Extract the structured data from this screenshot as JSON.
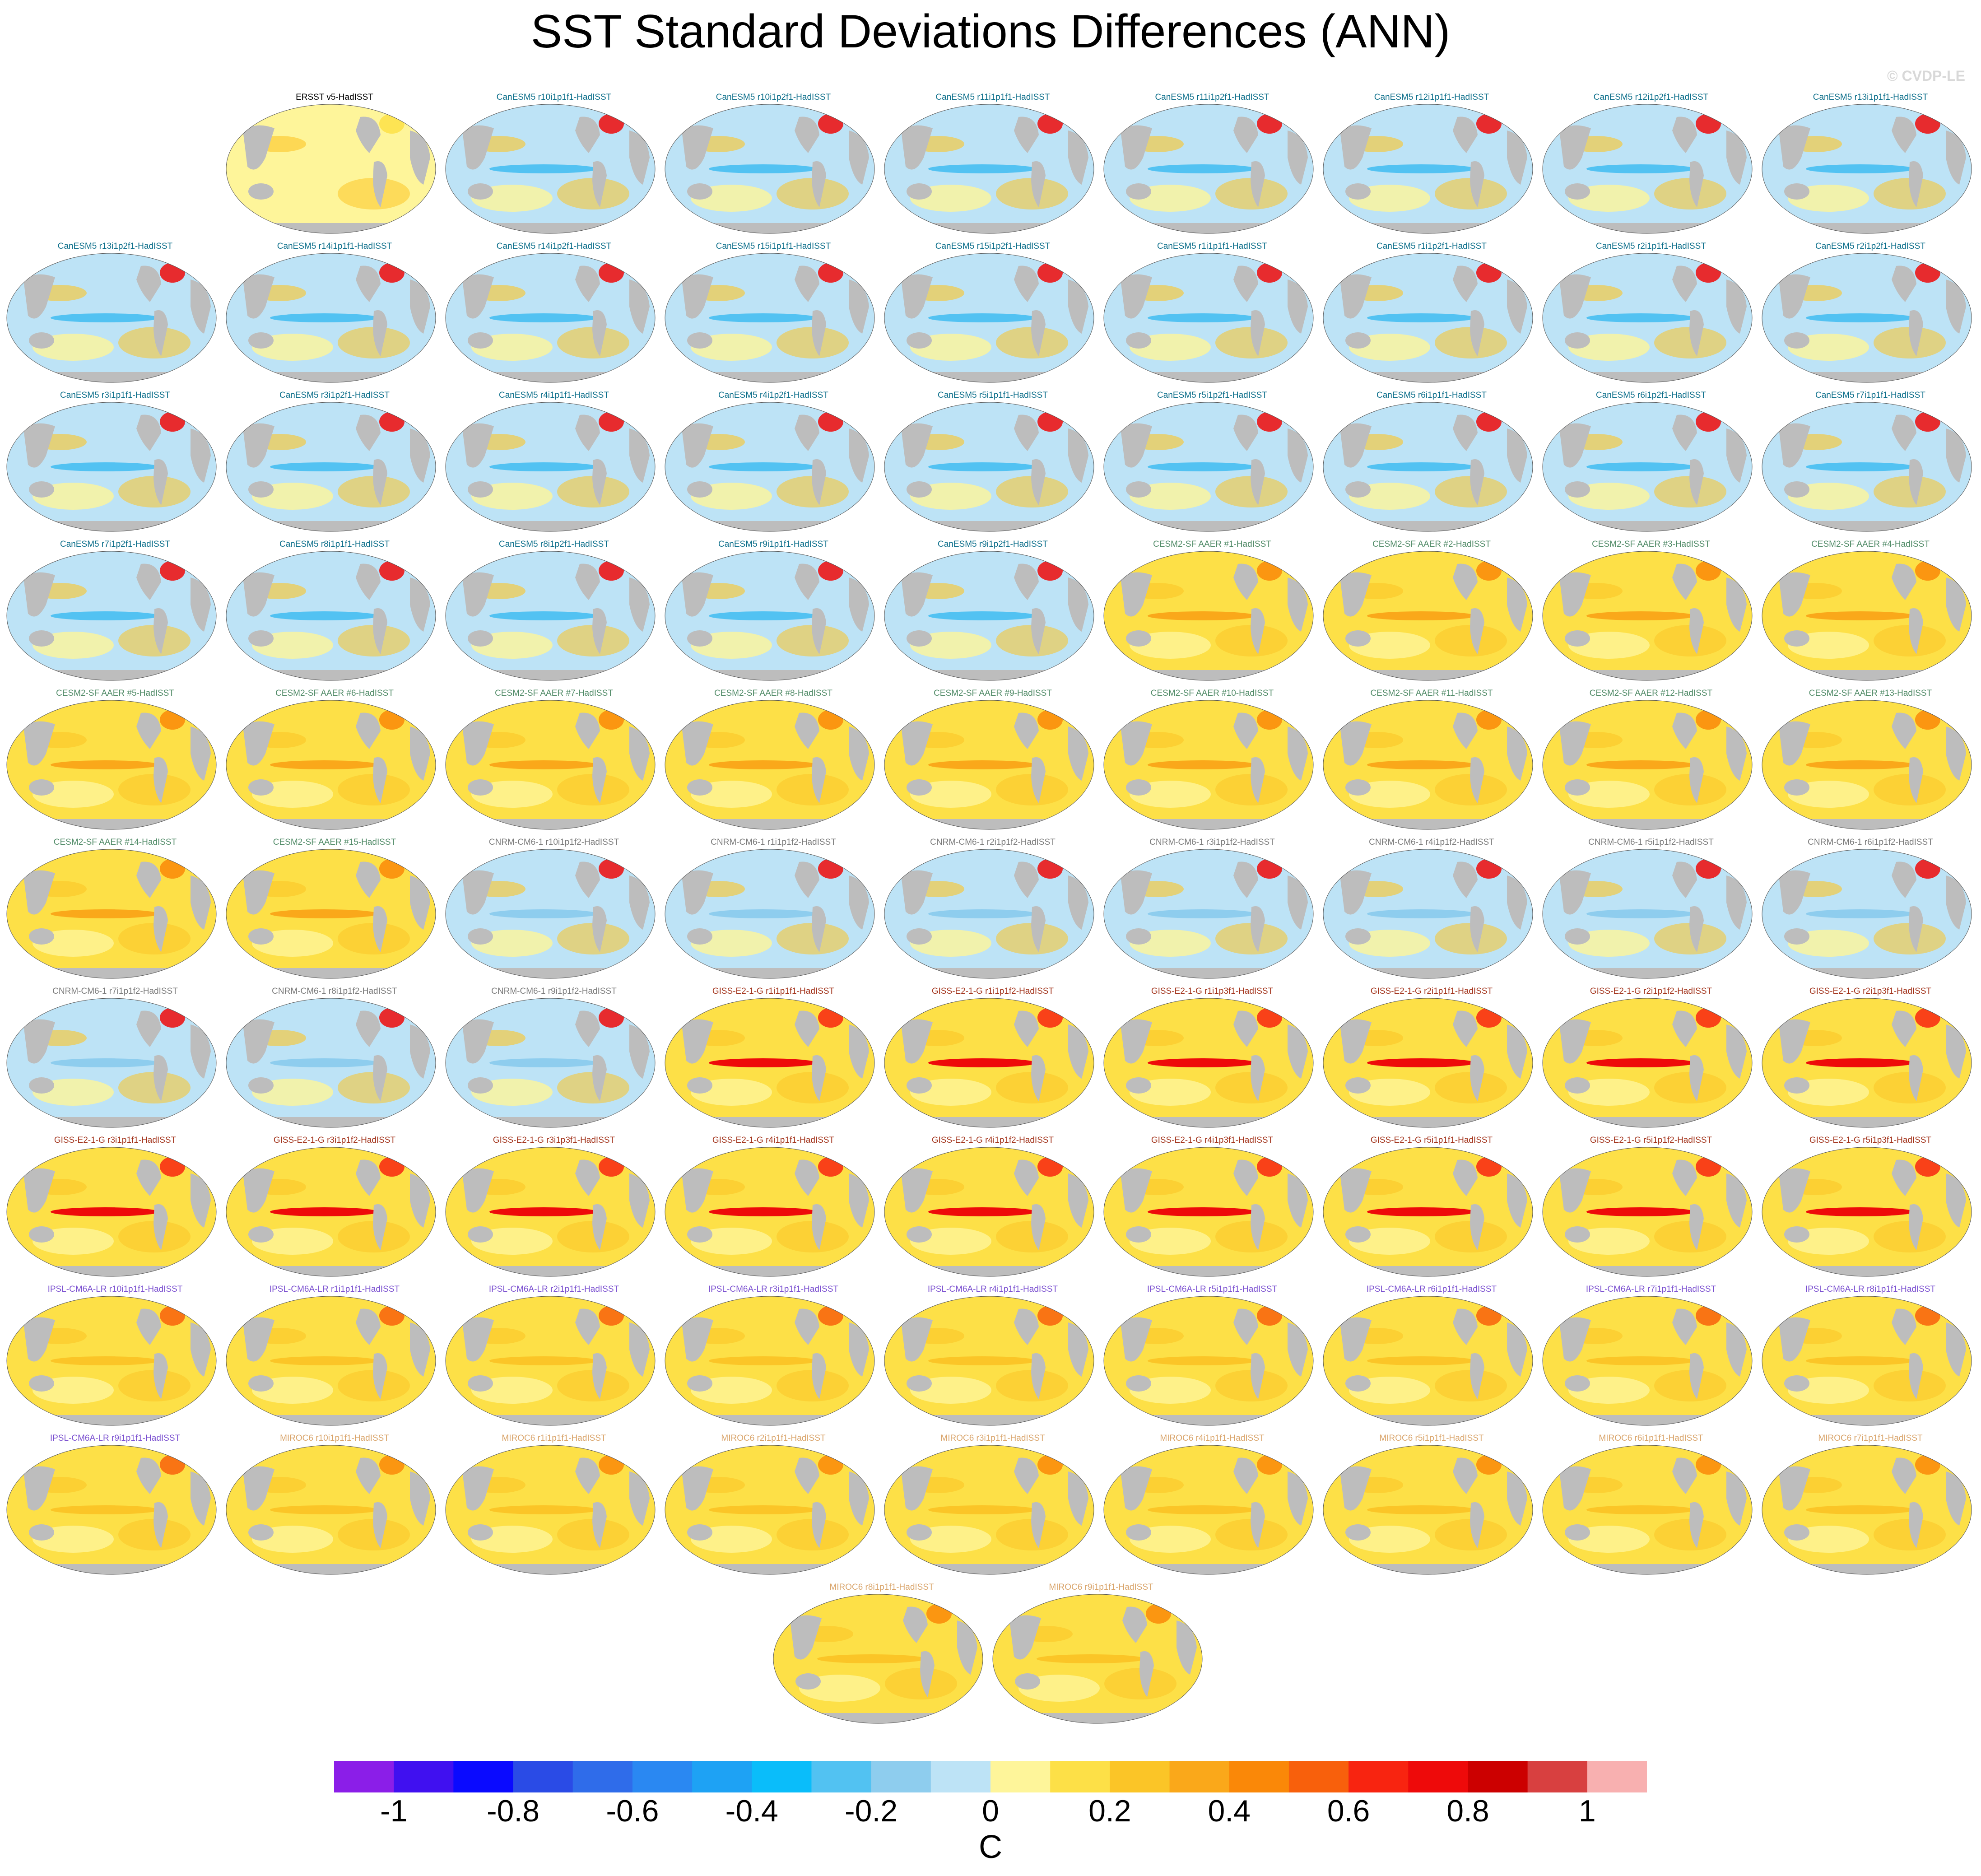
{
  "chart_data": {
    "type": "heatmap",
    "title": "SST Standard Deviations Differences (ANN)",
    "watermark": "© CVDP-LE",
    "variable": "SST standard deviation difference vs HadISST",
    "units": "C",
    "colorbar": {
      "ticks": [
        "-1",
        "-0.8",
        "-0.6",
        "-0.4",
        "-0.2",
        "0",
        "0.2",
        "0.4",
        "0.6",
        "0.8",
        "1"
      ],
      "range": [
        -1.1,
        1.1
      ],
      "colors": [
        "#8b1ee8",
        "#4010f0",
        "#0a0aff",
        "#2a4be6",
        "#2f6cea",
        "#2a88f2",
        "#1ea2f4",
        "#0abdfa",
        "#52c2f2",
        "#8ecdee",
        "#bde3f6",
        "#fef59a",
        "#fde047",
        "#fbc527",
        "#faa81a",
        "#fa8808",
        "#f8600c",
        "#f82410",
        "#ee0a0a",
        "#cc0000",
        "#d84040",
        "#f8b0b0"
      ]
    },
    "panels": [
      {
        "title": "ERSST v5-HadISST",
        "group": "obs",
        "color": "#000000"
      },
      {
        "title": "CanESM5 r10i1p1f1-HadISST",
        "group": "CanESM5",
        "color": "#0b6e8a"
      },
      {
        "title": "CanESM5 r10i1p2f1-HadISST",
        "group": "CanESM5",
        "color": "#0b6e8a"
      },
      {
        "title": "CanESM5 r11i1p1f1-HadISST",
        "group": "CanESM5",
        "color": "#0b6e8a"
      },
      {
        "title": "CanESM5 r11i1p2f1-HadISST",
        "group": "CanESM5",
        "color": "#0b6e8a"
      },
      {
        "title": "CanESM5 r12i1p1f1-HadISST",
        "group": "CanESM5",
        "color": "#0b6e8a"
      },
      {
        "title": "CanESM5 r12i1p2f1-HadISST",
        "group": "CanESM5",
        "color": "#0b6e8a"
      },
      {
        "title": "CanESM5 r13i1p1f1-HadISST",
        "group": "CanESM5",
        "color": "#0b6e8a"
      },
      {
        "title": "CanESM5 r13i1p2f1-HadISST",
        "group": "CanESM5",
        "color": "#0b6e8a"
      },
      {
        "title": "CanESM5 r14i1p1f1-HadISST",
        "group": "CanESM5",
        "color": "#0b6e8a"
      },
      {
        "title": "CanESM5 r14i1p2f1-HadISST",
        "group": "CanESM5",
        "color": "#0b6e8a"
      },
      {
        "title": "CanESM5 r15i1p1f1-HadISST",
        "group": "CanESM5",
        "color": "#0b6e8a"
      },
      {
        "title": "CanESM5 r15i1p2f1-HadISST",
        "group": "CanESM5",
        "color": "#0b6e8a"
      },
      {
        "title": "CanESM5 r1i1p1f1-HadISST",
        "group": "CanESM5",
        "color": "#0b6e8a"
      },
      {
        "title": "CanESM5 r1i1p2f1-HadISST",
        "group": "CanESM5",
        "color": "#0b6e8a"
      },
      {
        "title": "CanESM5 r2i1p1f1-HadISST",
        "group": "CanESM5",
        "color": "#0b6e8a"
      },
      {
        "title": "CanESM5 r2i1p2f1-HadISST",
        "group": "CanESM5",
        "color": "#0b6e8a"
      },
      {
        "title": "CanESM5 r3i1p1f1-HadISST",
        "group": "CanESM5",
        "color": "#0b6e8a"
      },
      {
        "title": "CanESM5 r3i1p2f1-HadISST",
        "group": "CanESM5",
        "color": "#0b6e8a"
      },
      {
        "title": "CanESM5 r4i1p1f1-HadISST",
        "group": "CanESM5",
        "color": "#0b6e8a"
      },
      {
        "title": "CanESM5 r4i1p2f1-HadISST",
        "group": "CanESM5",
        "color": "#0b6e8a"
      },
      {
        "title": "CanESM5 r5i1p1f1-HadISST",
        "group": "CanESM5",
        "color": "#0b6e8a"
      },
      {
        "title": "CanESM5 r5i1p2f1-HadISST",
        "group": "CanESM5",
        "color": "#0b6e8a"
      },
      {
        "title": "CanESM5 r6i1p1f1-HadISST",
        "group": "CanESM5",
        "color": "#0b6e8a"
      },
      {
        "title": "CanESM5 r6i1p2f1-HadISST",
        "group": "CanESM5",
        "color": "#0b6e8a"
      },
      {
        "title": "CanESM5 r7i1p1f1-HadISST",
        "group": "CanESM5",
        "color": "#0b6e8a"
      },
      {
        "title": "CanESM5 r7i1p2f1-HadISST",
        "group": "CanESM5",
        "color": "#0b6e8a"
      },
      {
        "title": "CanESM5 r8i1p1f1-HadISST",
        "group": "CanESM5",
        "color": "#0b6e8a"
      },
      {
        "title": "CanESM5 r8i1p2f1-HadISST",
        "group": "CanESM5",
        "color": "#0b6e8a"
      },
      {
        "title": "CanESM5 r9i1p1f1-HadISST",
        "group": "CanESM5",
        "color": "#0b6e8a"
      },
      {
        "title": "CanESM5 r9i1p2f1-HadISST",
        "group": "CanESM5",
        "color": "#0b6e8a"
      },
      {
        "title": "CESM2-SF AAER #1-HadISST",
        "group": "CESM2-SF AAER",
        "color": "#4f8a66"
      },
      {
        "title": "CESM2-SF AAER #2-HadISST",
        "group": "CESM2-SF AAER",
        "color": "#4f8a66"
      },
      {
        "title": "CESM2-SF AAER #3-HadISST",
        "group": "CESM2-SF AAER",
        "color": "#4f8a66"
      },
      {
        "title": "CESM2-SF AAER #4-HadISST",
        "group": "CESM2-SF AAER",
        "color": "#4f8a66"
      },
      {
        "title": "CESM2-SF AAER #5-HadISST",
        "group": "CESM2-SF AAER",
        "color": "#4f8a66"
      },
      {
        "title": "CESM2-SF AAER #6-HadISST",
        "group": "CESM2-SF AAER",
        "color": "#4f8a66"
      },
      {
        "title": "CESM2-SF AAER #7-HadISST",
        "group": "CESM2-SF AAER",
        "color": "#4f8a66"
      },
      {
        "title": "CESM2-SF AAER #8-HadISST",
        "group": "CESM2-SF AAER",
        "color": "#4f8a66"
      },
      {
        "title": "CESM2-SF AAER #9-HadISST",
        "group": "CESM2-SF AAER",
        "color": "#4f8a66"
      },
      {
        "title": "CESM2-SF AAER #10-HadISST",
        "group": "CESM2-SF AAER",
        "color": "#4f8a66"
      },
      {
        "title": "CESM2-SF AAER #11-HadISST",
        "group": "CESM2-SF AAER",
        "color": "#4f8a66"
      },
      {
        "title": "CESM2-SF AAER #12-HadISST",
        "group": "CESM2-SF AAER",
        "color": "#4f8a66"
      },
      {
        "title": "CESM2-SF AAER #13-HadISST",
        "group": "CESM2-SF AAER",
        "color": "#4f8a66"
      },
      {
        "title": "CESM2-SF AAER #14-HadISST",
        "group": "CESM2-SF AAER",
        "color": "#4f8a66"
      },
      {
        "title": "CESM2-SF AAER #15-HadISST",
        "group": "CESM2-SF AAER",
        "color": "#4f8a66"
      },
      {
        "title": "CNRM-CM6-1 r10i1p1f2-HadISST",
        "group": "CNRM-CM6-1",
        "color": "#7a7a7a"
      },
      {
        "title": "CNRM-CM6-1 r1i1p1f2-HadISST",
        "group": "CNRM-CM6-1",
        "color": "#7a7a7a"
      },
      {
        "title": "CNRM-CM6-1 r2i1p1f2-HadISST",
        "group": "CNRM-CM6-1",
        "color": "#7a7a7a"
      },
      {
        "title": "CNRM-CM6-1 r3i1p1f2-HadISST",
        "group": "CNRM-CM6-1",
        "color": "#7a7a7a"
      },
      {
        "title": "CNRM-CM6-1 r4i1p1f2-HadISST",
        "group": "CNRM-CM6-1",
        "color": "#7a7a7a"
      },
      {
        "title": "CNRM-CM6-1 r5i1p1f2-HadISST",
        "group": "CNRM-CM6-1",
        "color": "#7a7a7a"
      },
      {
        "title": "CNRM-CM6-1 r6i1p1f2-HadISST",
        "group": "CNRM-CM6-1",
        "color": "#7a7a7a"
      },
      {
        "title": "CNRM-CM6-1 r7i1p1f2-HadISST",
        "group": "CNRM-CM6-1",
        "color": "#7a7a7a"
      },
      {
        "title": "CNRM-CM6-1 r8i1p1f2-HadISST",
        "group": "CNRM-CM6-1",
        "color": "#7a7a7a"
      },
      {
        "title": "CNRM-CM6-1 r9i1p1f2-HadISST",
        "group": "CNRM-CM6-1",
        "color": "#7a7a7a"
      },
      {
        "title": "GISS-E2-1-G r1i1p1f1-HadISST",
        "group": "GISS-E2-1-G",
        "color": "#a2321a"
      },
      {
        "title": "GISS-E2-1-G r1i1p1f2-HadISST",
        "group": "GISS-E2-1-G",
        "color": "#a2321a"
      },
      {
        "title": "GISS-E2-1-G r1i1p3f1-HadISST",
        "group": "GISS-E2-1-G",
        "color": "#a2321a"
      },
      {
        "title": "GISS-E2-1-G r2i1p1f1-HadISST",
        "group": "GISS-E2-1-G",
        "color": "#a2321a"
      },
      {
        "title": "GISS-E2-1-G r2i1p1f2-HadISST",
        "group": "GISS-E2-1-G",
        "color": "#a2321a"
      },
      {
        "title": "GISS-E2-1-G r2i1p3f1-HadISST",
        "group": "GISS-E2-1-G",
        "color": "#a2321a"
      },
      {
        "title": "GISS-E2-1-G r3i1p1f1-HadISST",
        "group": "GISS-E2-1-G",
        "color": "#a2321a"
      },
      {
        "title": "GISS-E2-1-G r3i1p1f2-HadISST",
        "group": "GISS-E2-1-G",
        "color": "#a2321a"
      },
      {
        "title": "GISS-E2-1-G r3i1p3f1-HadISST",
        "group": "GISS-E2-1-G",
        "color": "#a2321a"
      },
      {
        "title": "GISS-E2-1-G r4i1p1f1-HadISST",
        "group": "GISS-E2-1-G",
        "color": "#a2321a"
      },
      {
        "title": "GISS-E2-1-G r4i1p1f2-HadISST",
        "group": "GISS-E2-1-G",
        "color": "#a2321a"
      },
      {
        "title": "GISS-E2-1-G r4i1p3f1-HadISST",
        "group": "GISS-E2-1-G",
        "color": "#a2321a"
      },
      {
        "title": "GISS-E2-1-G r5i1p1f1-HadISST",
        "group": "GISS-E2-1-G",
        "color": "#a2321a"
      },
      {
        "title": "GISS-E2-1-G r5i1p1f2-HadISST",
        "group": "GISS-E2-1-G",
        "color": "#a2321a"
      },
      {
        "title": "GISS-E2-1-G r5i1p3f1-HadISST",
        "group": "GISS-E2-1-G",
        "color": "#a2321a"
      },
      {
        "title": "IPSL-CM6A-LR r10i1p1f1-HadISST",
        "group": "IPSL-CM6A-LR",
        "color": "#7a4fd0"
      },
      {
        "title": "IPSL-CM6A-LR r1i1p1f1-HadISST",
        "group": "IPSL-CM6A-LR",
        "color": "#7a4fd0"
      },
      {
        "title": "IPSL-CM6A-LR r2i1p1f1-HadISST",
        "group": "IPSL-CM6A-LR",
        "color": "#7a4fd0"
      },
      {
        "title": "IPSL-CM6A-LR r3i1p1f1-HadISST",
        "group": "IPSL-CM6A-LR",
        "color": "#7a4fd0"
      },
      {
        "title": "IPSL-CM6A-LR r4i1p1f1-HadISST",
        "group": "IPSL-CM6A-LR",
        "color": "#7a4fd0"
      },
      {
        "title": "IPSL-CM6A-LR r5i1p1f1-HadISST",
        "group": "IPSL-CM6A-LR",
        "color": "#7a4fd0"
      },
      {
        "title": "IPSL-CM6A-LR r6i1p1f1-HadISST",
        "group": "IPSL-CM6A-LR",
        "color": "#7a4fd0"
      },
      {
        "title": "IPSL-CM6A-LR r7i1p1f1-HadISST",
        "group": "IPSL-CM6A-LR",
        "color": "#7a4fd0"
      },
      {
        "title": "IPSL-CM6A-LR r8i1p1f1-HadISST",
        "group": "IPSL-CM6A-LR",
        "color": "#7a4fd0"
      },
      {
        "title": "IPSL-CM6A-LR r9i1p1f1-HadISST",
        "group": "IPSL-CM6A-LR",
        "color": "#7a4fd0"
      },
      {
        "title": "MIROC6 r10i1p1f1-HadISST",
        "group": "MIROC6",
        "color": "#d9a46a"
      },
      {
        "title": "MIROC6 r1i1p1f1-HadISST",
        "group": "MIROC6",
        "color": "#d9a46a"
      },
      {
        "title": "MIROC6 r2i1p1f1-HadISST",
        "group": "MIROC6",
        "color": "#d9a46a"
      },
      {
        "title": "MIROC6 r3i1p1f1-HadISST",
        "group": "MIROC6",
        "color": "#d9a46a"
      },
      {
        "title": "MIROC6 r4i1p1f1-HadISST",
        "group": "MIROC6",
        "color": "#d9a46a"
      },
      {
        "title": "MIROC6 r5i1p1f1-HadISST",
        "group": "MIROC6",
        "color": "#d9a46a"
      },
      {
        "title": "MIROC6 r6i1p1f1-HadISST",
        "group": "MIROC6",
        "color": "#d9a46a"
      },
      {
        "title": "MIROC6 r7i1p1f1-HadISST",
        "group": "MIROC6",
        "color": "#d9a46a"
      },
      {
        "title": "MIROC6 r8i1p1f1-HadISST",
        "group": "MIROC6",
        "color": "#d9a46a"
      },
      {
        "title": "MIROC6 r9i1p1f1-HadISST",
        "group": "MIROC6",
        "color": "#d9a46a"
      }
    ]
  }
}
